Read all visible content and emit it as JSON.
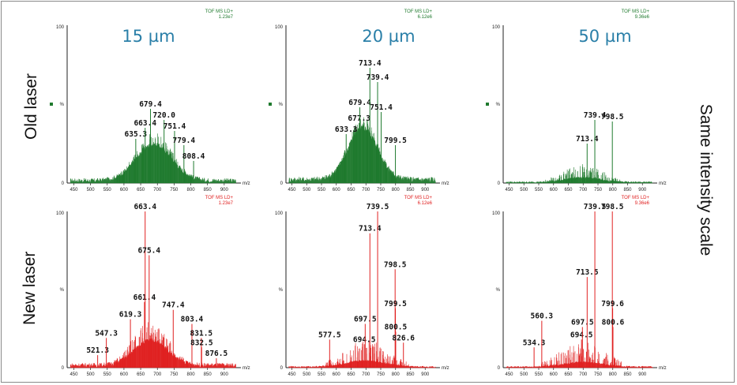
{
  "columns": [
    "15 µm",
    "20 µm",
    "50 µm"
  ],
  "rows": [
    "Old laser",
    "New laser"
  ],
  "side_label": "Same intensity scale",
  "colors": {
    "old": "#1f7a2e",
    "new": "#e02020",
    "title": "#2a7fa8"
  },
  "chart_data": [
    {
      "type": "line",
      "panel": "old-15",
      "color": "#1f7a2e",
      "header": [
        "TOF MS LD+",
        "1.23e7"
      ],
      "y_ticks": [
        "100",
        "%",
        "0"
      ],
      "x_ticks": [
        450,
        500,
        550,
        600,
        650,
        700,
        750,
        800,
        850,
        900
      ],
      "xlabel": "m/z",
      "xlim": [
        430,
        950
      ],
      "ylim": [
        0,
        100
      ],
      "envelope": {
        "center": 690,
        "width": 75,
        "height": 23,
        "base": 3
      },
      "peaks": [
        {
          "x": 635.3,
          "y": 28,
          "label": "635.3"
        },
        {
          "x": 663.4,
          "y": 35,
          "label": "663.4"
        },
        {
          "x": 679.4,
          "y": 47,
          "label": "679.4"
        },
        {
          "x": 720.0,
          "y": 40,
          "label": "720.0"
        },
        {
          "x": 751.4,
          "y": 33,
          "label": "751.4"
        },
        {
          "x": 779.4,
          "y": 24,
          "label": "779.4"
        },
        {
          "x": 808.4,
          "y": 14,
          "label": "808.4"
        }
      ]
    },
    {
      "type": "line",
      "panel": "old-20",
      "color": "#1f7a2e",
      "header": [
        "TOF MS LD+",
        "6.12e6"
      ],
      "y_ticks": [
        "100",
        "%",
        "0"
      ],
      "x_ticks": [
        450,
        500,
        550,
        600,
        650,
        700,
        750,
        800,
        850,
        900
      ],
      "xlabel": "m/z",
      "xlim": [
        430,
        950
      ],
      "ylim": [
        0,
        100
      ],
      "envelope": {
        "center": 690,
        "width": 70,
        "height": 33,
        "base": 4
      },
      "peaks": [
        {
          "x": 633.3,
          "y": 31,
          "label": "633.3"
        },
        {
          "x": 677.3,
          "y": 38,
          "label": "677.3"
        },
        {
          "x": 679.4,
          "y": 48,
          "label": "679.4"
        },
        {
          "x": 713.4,
          "y": 73,
          "label": "713.4"
        },
        {
          "x": 739.4,
          "y": 64,
          "label": "739.4"
        },
        {
          "x": 751.4,
          "y": 45,
          "label": "751.4"
        },
        {
          "x": 799.5,
          "y": 24,
          "label": "799.5"
        }
      ]
    },
    {
      "type": "line",
      "panel": "old-50",
      "color": "#1f7a2e",
      "header": [
        "TOF MS LD+",
        "9.36e6"
      ],
      "y_ticks": [
        "100",
        "%",
        "0"
      ],
      "x_ticks": [
        450,
        500,
        550,
        600,
        650,
        700,
        750,
        800,
        850,
        900
      ],
      "xlabel": "m/z",
      "xlim": [
        430,
        950
      ],
      "ylim": [
        0,
        100
      ],
      "envelope": {
        "center": 700,
        "width": 80,
        "height": 3,
        "base": 1
      },
      "peaks": [
        {
          "x": 713.4,
          "y": 25,
          "label": "713.4"
        },
        {
          "x": 739.4,
          "y": 40,
          "label": "739.4"
        },
        {
          "x": 798.5,
          "y": 39,
          "label": "798.5"
        }
      ]
    },
    {
      "type": "line",
      "panel": "new-15",
      "color": "#e02020",
      "header": [
        "TOF MS LD+",
        "1.23e7"
      ],
      "y_ticks": [
        "100",
        "%",
        "0"
      ],
      "x_ticks": [
        450,
        500,
        550,
        600,
        650,
        700,
        750,
        800,
        850,
        900
      ],
      "xlabel": "m/z",
      "xlim": [
        430,
        950
      ],
      "ylim": [
        0,
        100
      ],
      "envelope": {
        "center": 680,
        "width": 70,
        "height": 16,
        "base": 3
      },
      "peaks": [
        {
          "x": 521.3,
          "y": 8,
          "label": "521.3"
        },
        {
          "x": 547.3,
          "y": 19,
          "label": "547.3"
        },
        {
          "x": 619.3,
          "y": 31,
          "label": "619.3"
        },
        {
          "x": 661.4,
          "y": 42,
          "label": "661.4"
        },
        {
          "x": 663.4,
          "y": 100,
          "label": "663.4"
        },
        {
          "x": 675.4,
          "y": 72,
          "label": "675.4"
        },
        {
          "x": 747.4,
          "y": 37,
          "label": "747.4"
        },
        {
          "x": 803.4,
          "y": 28,
          "label": "803.4"
        },
        {
          "x": 831.5,
          "y": 19,
          "label": "831.5"
        },
        {
          "x": 832.5,
          "y": 13,
          "label": "832.5"
        },
        {
          "x": 876.5,
          "y": 6,
          "label": "876.5"
        }
      ]
    },
    {
      "type": "line",
      "panel": "new-20",
      "color": "#e02020",
      "header": [
        "TOF MS LD+",
        "6.12e6"
      ],
      "y_ticks": [
        "100",
        "%",
        "0"
      ],
      "x_ticks": [
        450,
        500,
        550,
        600,
        650,
        700,
        750,
        800,
        850,
        900
      ],
      "xlabel": "m/z",
      "xlim": [
        430,
        950
      ],
      "ylim": [
        0,
        100
      ],
      "envelope": {
        "center": 700,
        "width": 90,
        "height": 4,
        "base": 1
      },
      "peaks": [
        {
          "x": 577.5,
          "y": 18,
          "label": "577.5"
        },
        {
          "x": 694.5,
          "y": 15,
          "label": "694.5"
        },
        {
          "x": 697.5,
          "y": 28,
          "label": "697.5"
        },
        {
          "x": 713.4,
          "y": 86,
          "label": "713.4"
        },
        {
          "x": 739.5,
          "y": 100,
          "label": "739.5"
        },
        {
          "x": 798.5,
          "y": 63,
          "label": "798.5"
        },
        {
          "x": 799.5,
          "y": 38,
          "label": "799.5"
        },
        {
          "x": 800.5,
          "y": 23,
          "label": "800.5"
        },
        {
          "x": 826.6,
          "y": 16,
          "label": "826.6"
        }
      ]
    },
    {
      "type": "line",
      "panel": "new-50",
      "color": "#e02020",
      "header": [
        "TOF MS LD+",
        "9.36e6"
      ],
      "y_ticks": [
        "100",
        "%",
        "0"
      ],
      "x_ticks": [
        450,
        500,
        550,
        600,
        650,
        700,
        750,
        800,
        850,
        900
      ],
      "xlabel": "m/z",
      "xlim": [
        430,
        950
      ],
      "ylim": [
        0,
        100
      ],
      "envelope": {
        "center": 700,
        "width": 90,
        "height": 3,
        "base": 1
      },
      "peaks": [
        {
          "x": 534.3,
          "y": 13,
          "label": "534.3"
        },
        {
          "x": 560.3,
          "y": 30,
          "label": "560.3"
        },
        {
          "x": 694.5,
          "y": 18,
          "label": "694.5"
        },
        {
          "x": 697.5,
          "y": 26,
          "label": "697.5"
        },
        {
          "x": 713.5,
          "y": 58,
          "label": "713.5"
        },
        {
          "x": 739.5,
          "y": 100,
          "label": "739.5"
        },
        {
          "x": 798.5,
          "y": 100,
          "label": "798.5"
        },
        {
          "x": 799.6,
          "y": 38,
          "label": "799.6"
        },
        {
          "x": 800.6,
          "y": 26,
          "label": "800.6"
        }
      ]
    }
  ]
}
